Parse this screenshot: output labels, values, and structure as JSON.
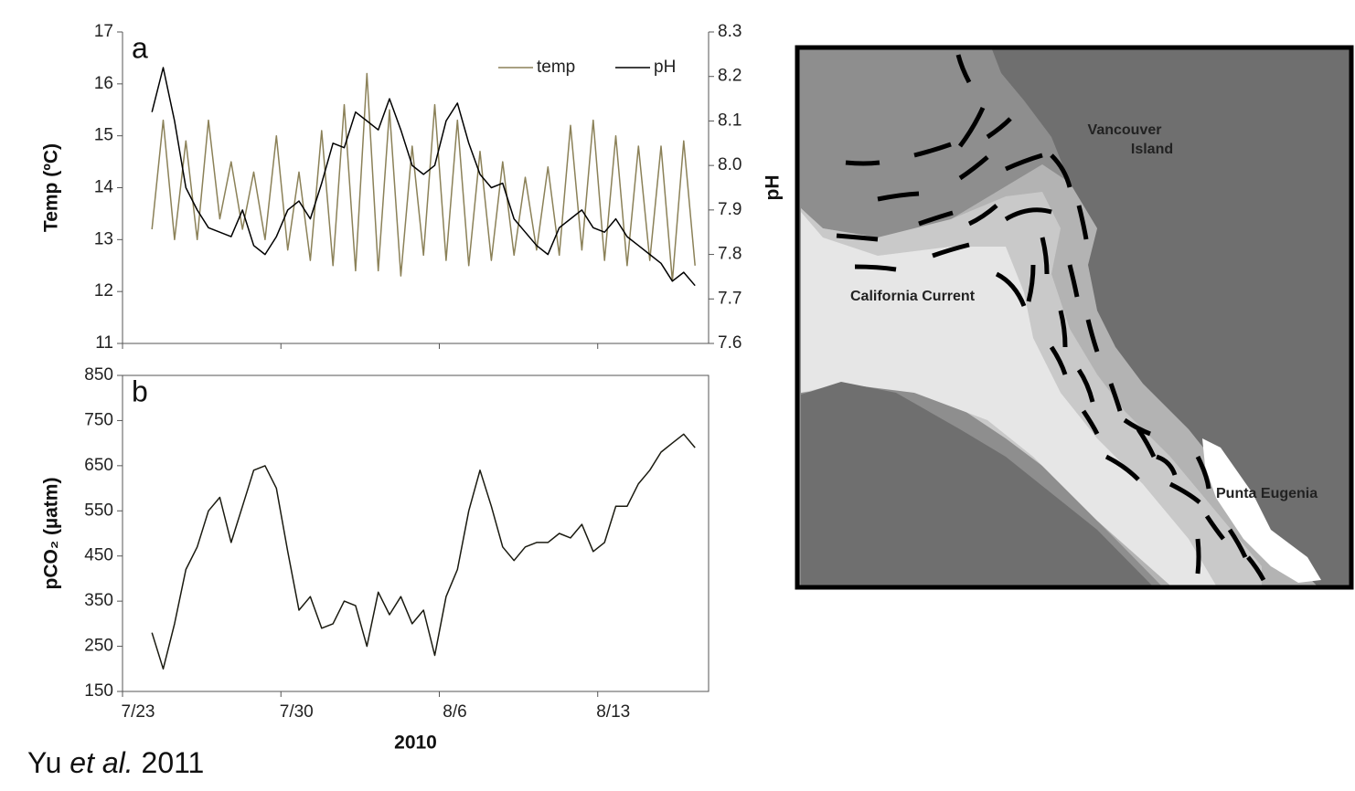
{
  "chart_data": [
    {
      "type": "line",
      "panel_label": "a",
      "ylabel": "Temp (ºC)",
      "y2label": "pH",
      "x": [
        1.3,
        1.8,
        2.3,
        2.8,
        3.3,
        3.8,
        4.3,
        4.8,
        5.3,
        5.8,
        6.3,
        6.8,
        7.3,
        7.8,
        8.3,
        8.8,
        9.3,
        9.8,
        10.3,
        10.8,
        11.3,
        11.8,
        12.3,
        12.8,
        13.3,
        13.8,
        14.3,
        14.8,
        15.3,
        15.8,
        16.3,
        16.8,
        17.3,
        17.8,
        18.3,
        18.8,
        19.3,
        19.8,
        20.3,
        20.8,
        21.3,
        21.8,
        22.3,
        22.8,
        23.3,
        23.8,
        24.3,
        24.8,
        25.3
      ],
      "series": [
        {
          "name": "temp",
          "color": "#8b8158",
          "values": [
            13.2,
            15.3,
            13.0,
            14.9,
            13.0,
            15.3,
            13.4,
            14.5,
            13.2,
            14.3,
            13.0,
            15.0,
            12.8,
            14.3,
            12.6,
            15.1,
            12.5,
            15.6,
            12.4,
            16.2,
            12.4,
            15.5,
            12.3,
            14.8,
            12.7,
            15.6,
            12.6,
            15.3,
            12.5,
            14.7,
            12.6,
            14.5,
            12.7,
            14.2,
            12.8,
            14.4,
            12.7,
            15.2,
            12.8,
            15.3,
            12.6,
            15.0,
            12.5,
            14.8,
            12.6,
            14.8,
            12.2,
            14.9,
            12.5
          ]
        },
        {
          "name": "pH",
          "color": "#000000",
          "axis": "y2",
          "values": [
            8.12,
            8.22,
            8.1,
            7.95,
            7.9,
            7.86,
            7.85,
            7.84,
            7.9,
            7.82,
            7.8,
            7.84,
            7.9,
            7.92,
            7.88,
            7.96,
            8.05,
            8.04,
            8.12,
            8.1,
            8.08,
            8.15,
            8.08,
            8.0,
            7.98,
            8.0,
            8.1,
            8.14,
            8.05,
            7.98,
            7.95,
            7.96,
            7.88,
            7.85,
            7.82,
            7.8,
            7.86,
            7.88,
            7.9,
            7.86,
            7.85,
            7.88,
            7.84,
            7.82,
            7.8,
            7.78,
            7.74,
            7.76,
            7.73
          ]
        }
      ],
      "xlim": [
        0,
        25.9
      ],
      "xticks": [
        0,
        7,
        14,
        21
      ],
      "ylim": [
        11,
        17
      ],
      "yticks": [
        11,
        12,
        13,
        14,
        15,
        16,
        17
      ],
      "y2lim": [
        7.6,
        8.3
      ],
      "y2ticks": [
        7.6,
        7.7,
        7.8,
        7.9,
        {
          "value": 8.0,
          "label": "8.0"
        },
        8.1,
        8.2,
        8.3
      ],
      "legend": "upper right"
    },
    {
      "type": "line",
      "panel_label": "b",
      "ylabel": "pCO₂ (µatm)",
      "xlabel": "2010",
      "x": [
        1.3,
        1.8,
        2.3,
        2.8,
        3.3,
        3.8,
        4.3,
        4.8,
        5.3,
        5.8,
        6.3,
        6.8,
        7.3,
        7.8,
        8.3,
        8.8,
        9.3,
        9.8,
        10.3,
        10.8,
        11.3,
        11.8,
        12.3,
        12.8,
        13.3,
        13.8,
        14.3,
        14.8,
        15.3,
        15.8,
        16.3,
        16.8,
        17.3,
        17.8,
        18.3,
        18.8,
        19.3,
        19.8,
        20.3,
        20.8,
        21.3,
        21.8,
        22.3,
        22.8,
        23.3,
        23.8,
        24.3,
        24.8,
        25.3
      ],
      "series": [
        {
          "color": "#1a1a10",
          "values": [
            280,
            200,
            300,
            420,
            470,
            550,
            580,
            480,
            560,
            640,
            650,
            600,
            460,
            330,
            360,
            290,
            300,
            350,
            340,
            250,
            370,
            320,
            360,
            300,
            330,
            230,
            360,
            420,
            550,
            640,
            560,
            470,
            440,
            470,
            480,
            480,
            500,
            490,
            520,
            460,
            480,
            560,
            560,
            610,
            640,
            680,
            700,
            720,
            690
          ]
        }
      ],
      "xlim": [
        0,
        25.9
      ],
      "xticks": [
        {
          "value": 0,
          "label": "7/23"
        },
        {
          "value": 7,
          "label": "7/30"
        },
        {
          "value": 14,
          "label": "8/6"
        },
        {
          "value": 21,
          "label": "8/13"
        }
      ],
      "ylim": [
        150,
        850
      ],
      "yticks": [
        150,
        250,
        350,
        450,
        550,
        650,
        750,
        850
      ]
    }
  ],
  "map": {
    "labels": [
      "Vancouver",
      "Island",
      "California Current",
      "Punta Eugenia"
    ]
  },
  "citation": {
    "author": "Yu",
    "etal": "et al.",
    "year": "2011"
  }
}
